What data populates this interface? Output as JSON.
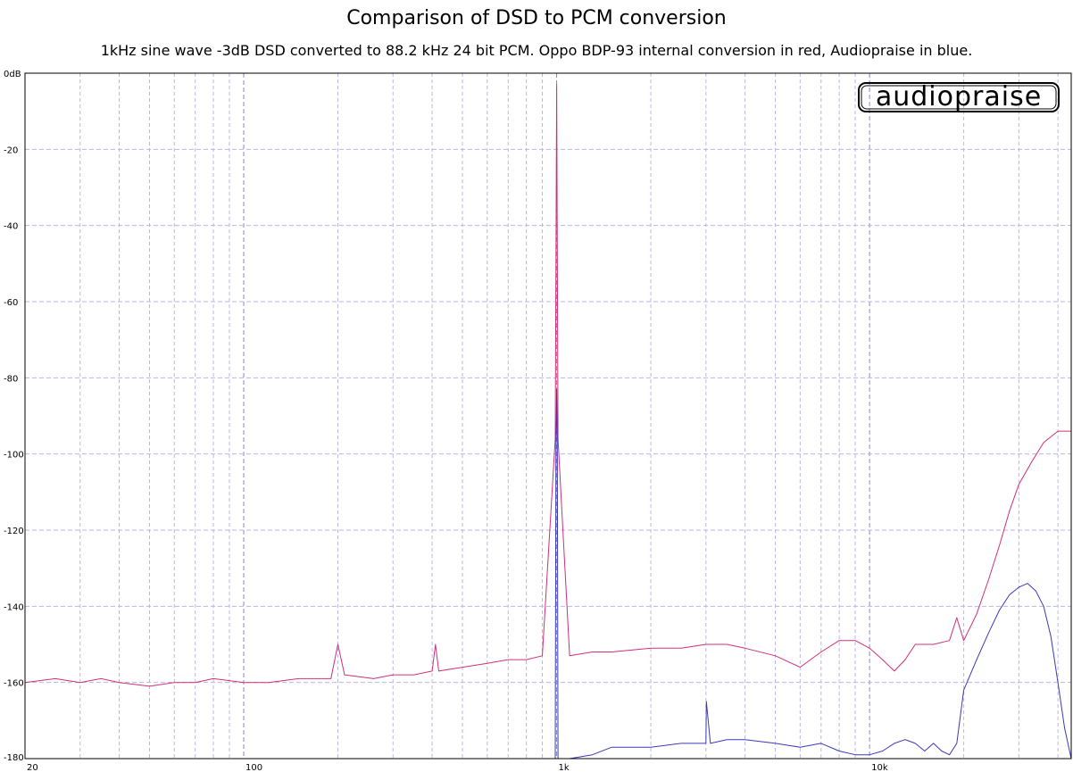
{
  "chart_data": {
    "type": "line",
    "title": "Comparison of DSD to PCM conversion",
    "subtitle": "1kHz sine wave  -3dB DSD converted to 88.2 kHz 24 bit PCM. Oppo BDP-93 internal conversion in red, Audiopraise in blue.",
    "watermark": "audiopraise",
    "x_scale": "log",
    "xlim": [
      20,
      44100
    ],
    "ylim": [
      -180,
      0
    ],
    "grid": true,
    "x_tick_labels": [
      {
        "value": 20,
        "label": "20"
      },
      {
        "value": 100,
        "label": "100"
      },
      {
        "value": 1000,
        "label": "1k"
      },
      {
        "value": 10000,
        "label": "10k"
      }
    ],
    "y_tick_labels": [
      {
        "value": 0,
        "label": "0dB"
      },
      {
        "value": -20,
        "label": "-20"
      },
      {
        "value": -40,
        "label": "-40"
      },
      {
        "value": -60,
        "label": "-60"
      },
      {
        "value": -80,
        "label": "-80"
      },
      {
        "value": -100,
        "label": "-100"
      },
      {
        "value": -120,
        "label": "-120"
      },
      {
        "value": -140,
        "label": "-140"
      },
      {
        "value": -160,
        "label": "-160"
      },
      {
        "value": -180,
        "label": "-180"
      }
    ],
    "series": [
      {
        "color": "#d0307a",
        "x": [
          20,
          25,
          30,
          35,
          40,
          50,
          60,
          70,
          80,
          100,
          120,
          150,
          190,
          200,
          210,
          260,
          300,
          350,
          400,
          410,
          420,
          500,
          600,
          700,
          800,
          900,
          990,
          1000,
          1010,
          1100,
          1300,
          1500,
          2000,
          2500,
          3000,
          3500,
          4000,
          5000,
          6000,
          7000,
          8000,
          9000,
          10000,
          11000,
          12000,
          13000,
          14000,
          16000,
          18000,
          19000,
          20000,
          22000,
          24000,
          26000,
          28000,
          30000,
          33000,
          36000,
          40000,
          44100
        ],
        "y": [
          -160,
          -159,
          -160,
          -159,
          -160,
          -161,
          -160,
          -160,
          -159,
          -160,
          -160,
          -159,
          -159,
          -150,
          -158,
          -159,
          -158,
          -158,
          -157,
          -150,
          -157,
          -156,
          -155,
          -154,
          -154,
          -153,
          -96,
          -3,
          -96,
          -153,
          -152,
          -152,
          -151,
          -151,
          -150,
          -150,
          -151,
          -153,
          -156,
          -152,
          -149,
          -149,
          -151,
          -154,
          -157,
          -154,
          -150,
          -150,
          -149,
          -143,
          -149,
          -142,
          -133,
          -124,
          -115,
          -108,
          -102,
          -97,
          -94,
          -94
        ]
      },
      {
        "color": "#3a3ab8",
        "x": [
          990,
          995,
          1000,
          1005,
          1010,
          1020,
          1100,
          1300,
          1500,
          2000,
          2500,
          3000,
          3010,
          3100,
          3500,
          4000,
          5000,
          6000,
          7000,
          8000,
          9000,
          10000,
          11000,
          12000,
          13000,
          14000,
          15000,
          16000,
          17000,
          18000,
          19000,
          20000,
          22000,
          24000,
          26000,
          28000,
          30000,
          32000,
          34000,
          36000,
          38000,
          40000,
          42000,
          44100
        ],
        "y": [
          -180,
          -97,
          -83,
          -97,
          -180,
          -180,
          -180,
          -179,
          -177,
          -177,
          -176,
          -176,
          -165,
          -176,
          -175,
          -175,
          -176,
          -177,
          -176,
          -178,
          -179,
          -179,
          -178,
          -176,
          -175,
          -176,
          -178,
          -176,
          -178,
          -179,
          -176,
          -162,
          -154,
          -147,
          -141,
          -137,
          -135,
          -134,
          -136,
          -140,
          -148,
          -160,
          -172,
          -180
        ]
      }
    ]
  }
}
